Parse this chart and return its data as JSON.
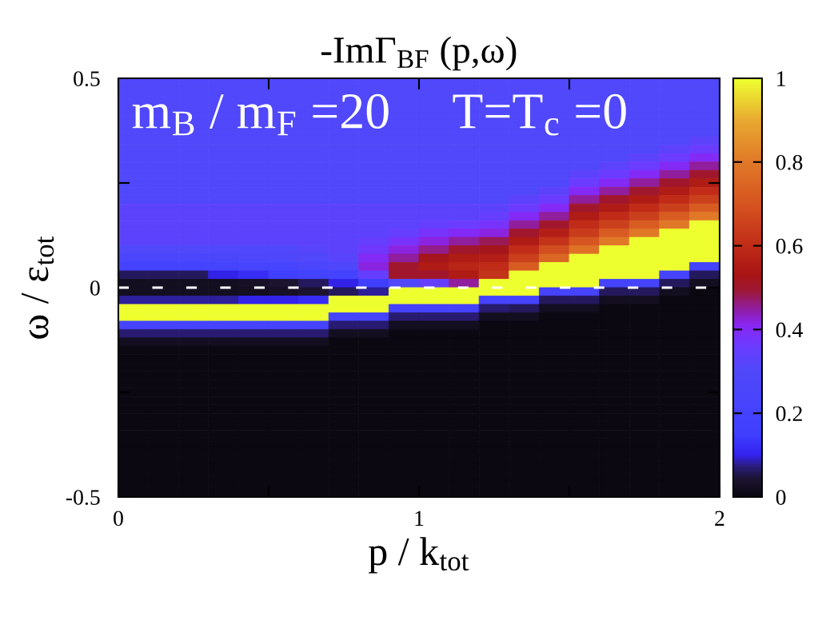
{
  "chart_data": {
    "type": "heatmap",
    "title": "-ImΓ$_{BF}$ (p,ω)",
    "xlabel": "p / k$_{tot}$",
    "ylabel": "ω / ε$_{tot}$",
    "annotations": [
      "m$_{B}$ / m$_{F}$ =20",
      "T=T$_{c}$ =0"
    ],
    "x": [
      0.05,
      0.15,
      0.25,
      0.35,
      0.45,
      0.55,
      0.65,
      0.75,
      0.85,
      0.95,
      1.05,
      1.15,
      1.25,
      1.35,
      1.45,
      1.55,
      1.65,
      1.75,
      1.85,
      1.95
    ],
    "y": [
      0.49,
      0.47,
      0.45,
      0.43,
      0.41,
      0.39,
      0.37,
      0.35,
      0.33,
      0.31,
      0.29,
      0.27,
      0.25,
      0.23,
      0.21,
      0.19,
      0.17,
      0.15,
      0.13,
      0.11,
      0.09,
      0.07,
      0.05,
      0.03,
      0.01,
      -0.01,
      -0.03,
      -0.05,
      -0.07,
      -0.09,
      -0.11,
      -0.13,
      -0.15,
      -0.17,
      -0.19,
      -0.21,
      -0.23,
      -0.25,
      -0.27,
      -0.29,
      -0.31,
      -0.33,
      -0.35,
      -0.37,
      -0.39,
      -0.41,
      -0.43,
      -0.45,
      -0.47,
      -0.49
    ],
    "xlim": [
      0,
      2
    ],
    "xticks": [
      0,
      {
        "value": 0.5,
        "label": null
      },
      1,
      {
        "value": 1.5,
        "label": null
      },
      2
    ],
    "ylim": [
      -0.5,
      0.5
    ],
    "yticks": [
      {
        "value": -0.5,
        "label": "-0.5"
      },
      {
        "value": -0.25,
        "label": null
      },
      0,
      {
        "value": 0.25,
        "label": null
      },
      0.5
    ],
    "clim": [
      0,
      1
    ],
    "cticks": [
      0,
      0.2,
      0.4,
      0.6,
      0.8,
      1
    ],
    "ref_lines": [
      {
        "axis": "y",
        "value": 0,
        "color": "#ffffff",
        "line_style": "dashed"
      }
    ],
    "cells": [
      [
        0.3,
        0.3,
        0.3,
        0.3,
        0.3,
        0.3,
        0.3,
        0.3,
        0.3,
        0.3,
        0.3,
        0.3,
        0.3,
        0.3,
        0.3,
        0.3,
        0.3,
        0.3,
        0.3,
        0.3
      ],
      [
        0.3,
        0.3,
        0.3,
        0.3,
        0.3,
        0.3,
        0.3,
        0.3,
        0.3,
        0.3,
        0.3,
        0.3,
        0.3,
        0.3,
        0.3,
        0.3,
        0.3,
        0.3,
        0.3,
        0.3
      ],
      [
        0.3,
        0.3,
        0.3,
        0.3,
        0.3,
        0.3,
        0.3,
        0.3,
        0.3,
        0.3,
        0.3,
        0.3,
        0.3,
        0.3,
        0.3,
        0.3,
        0.3,
        0.3,
        0.3,
        0.3
      ],
      [
        0.3,
        0.3,
        0.3,
        0.3,
        0.3,
        0.3,
        0.3,
        0.3,
        0.3,
        0.3,
        0.3,
        0.3,
        0.3,
        0.3,
        0.3,
        0.3,
        0.3,
        0.3,
        0.3,
        0.3
      ],
      [
        0.3,
        0.3,
        0.3,
        0.3,
        0.3,
        0.3,
        0.3,
        0.3,
        0.3,
        0.3,
        0.3,
        0.3,
        0.3,
        0.3,
        0.3,
        0.3,
        0.3,
        0.3,
        0.3,
        0.3
      ],
      [
        0.3,
        0.3,
        0.3,
        0.3,
        0.3,
        0.3,
        0.3,
        0.3,
        0.3,
        0.3,
        0.3,
        0.3,
        0.3,
        0.3,
        0.3,
        0.3,
        0.3,
        0.3,
        0.3,
        0.3
      ],
      [
        0.3,
        0.3,
        0.3,
        0.3,
        0.3,
        0.3,
        0.3,
        0.3,
        0.3,
        0.3,
        0.3,
        0.3,
        0.3,
        0.3,
        0.3,
        0.3,
        0.3,
        0.3,
        0.3,
        0.3
      ],
      [
        0.3,
        0.3,
        0.3,
        0.3,
        0.3,
        0.3,
        0.3,
        0.3,
        0.3,
        0.3,
        0.3,
        0.3,
        0.3,
        0.3,
        0.3,
        0.3,
        0.3,
        0.3,
        0.3,
        0.33
      ],
      [
        0.3,
        0.3,
        0.3,
        0.3,
        0.3,
        0.3,
        0.3,
        0.3,
        0.3,
        0.3,
        0.3,
        0.3,
        0.3,
        0.3,
        0.3,
        0.3,
        0.3,
        0.3,
        0.33,
        0.36
      ],
      [
        0.3,
        0.3,
        0.3,
        0.3,
        0.3,
        0.3,
        0.3,
        0.3,
        0.3,
        0.3,
        0.3,
        0.3,
        0.3,
        0.3,
        0.3,
        0.3,
        0.3,
        0.33,
        0.36,
        0.4
      ],
      [
        0.3,
        0.3,
        0.3,
        0.3,
        0.3,
        0.3,
        0.3,
        0.3,
        0.3,
        0.3,
        0.3,
        0.3,
        0.3,
        0.3,
        0.3,
        0.3,
        0.33,
        0.36,
        0.4,
        0.45
      ],
      [
        0.3,
        0.3,
        0.3,
        0.3,
        0.3,
        0.3,
        0.3,
        0.3,
        0.3,
        0.3,
        0.3,
        0.3,
        0.3,
        0.3,
        0.3,
        0.33,
        0.36,
        0.4,
        0.45,
        0.5
      ],
      [
        0.3,
        0.3,
        0.3,
        0.3,
        0.3,
        0.3,
        0.3,
        0.3,
        0.3,
        0.3,
        0.3,
        0.3,
        0.3,
        0.3,
        0.3,
        0.36,
        0.4,
        0.45,
        0.5,
        0.55
      ],
      [
        0.3,
        0.3,
        0.3,
        0.3,
        0.3,
        0.3,
        0.3,
        0.3,
        0.3,
        0.3,
        0.3,
        0.3,
        0.3,
        0.3,
        0.33,
        0.4,
        0.45,
        0.5,
        0.55,
        0.6
      ],
      [
        0.3,
        0.3,
        0.3,
        0.3,
        0.3,
        0.3,
        0.3,
        0.3,
        0.3,
        0.3,
        0.3,
        0.3,
        0.3,
        0.33,
        0.36,
        0.45,
        0.5,
        0.55,
        0.6,
        0.65
      ],
      [
        0.33,
        0.33,
        0.33,
        0.33,
        0.33,
        0.33,
        0.33,
        0.33,
        0.33,
        0.33,
        0.33,
        0.33,
        0.33,
        0.36,
        0.4,
        0.5,
        0.55,
        0.6,
        0.65,
        0.72
      ],
      [
        0.33,
        0.33,
        0.33,
        0.33,
        0.33,
        0.33,
        0.33,
        0.33,
        0.33,
        0.33,
        0.33,
        0.33,
        0.35,
        0.4,
        0.45,
        0.55,
        0.6,
        0.65,
        0.72,
        0.8
      ],
      [
        0.33,
        0.33,
        0.33,
        0.33,
        0.33,
        0.33,
        0.33,
        0.33,
        0.33,
        0.33,
        0.35,
        0.36,
        0.38,
        0.45,
        0.5,
        0.6,
        0.65,
        0.72,
        0.8,
        1
      ],
      [
        0.33,
        0.33,
        0.33,
        0.33,
        0.33,
        0.33,
        0.33,
        0.33,
        0.33,
        0.35,
        0.38,
        0.4,
        0.42,
        0.5,
        0.56,
        0.64,
        0.72,
        0.8,
        1,
        1
      ],
      [
        0.33,
        0.33,
        0.33,
        0.33,
        0.33,
        0.33,
        0.33,
        0.33,
        0.35,
        0.38,
        0.42,
        0.45,
        0.48,
        0.55,
        0.62,
        0.7,
        0.8,
        1,
        1,
        1
      ],
      [
        0.3,
        0.3,
        0.3,
        0.3,
        0.3,
        0.3,
        0.32,
        0.33,
        0.37,
        0.42,
        0.46,
        0.5,
        0.52,
        0.6,
        0.68,
        0.78,
        1,
        1,
        1,
        1
      ],
      [
        0.25,
        0.25,
        0.25,
        0.26,
        0.27,
        0.28,
        0.3,
        0.32,
        0.4,
        0.45,
        0.52,
        0.55,
        0.56,
        0.65,
        0.75,
        1,
        1,
        1,
        1,
        1
      ],
      [
        0.2,
        0.2,
        0.2,
        0.2,
        0.22,
        0.22,
        0.25,
        0.28,
        0.42,
        0.5,
        0.55,
        0.58,
        0.6,
        0.72,
        1,
        1,
        1,
        1,
        1,
        0.2
      ],
      [
        0.06,
        0.06,
        0.06,
        0.1,
        0.12,
        0.15,
        0.18,
        0.2,
        0.35,
        0.5,
        0.5,
        0.55,
        0.62,
        1,
        1,
        1,
        1,
        1,
        0.2,
        0.06
      ],
      [
        0.02,
        0.02,
        0.02,
        0.02,
        0.03,
        0.04,
        0.06,
        0.1,
        0.15,
        0.3,
        0.35,
        0.45,
        1,
        1,
        1,
        1,
        0.2,
        0.2,
        0.06,
        0.02
      ],
      [
        0.02,
        0.02,
        0.02,
        0.02,
        0.02,
        0.03,
        0.04,
        0.06,
        0.08,
        1,
        1,
        1,
        1,
        1,
        0.2,
        0.2,
        0.06,
        0.06,
        0.02,
        0
      ],
      [
        0.08,
        0.08,
        0.08,
        0.08,
        0.1,
        0.1,
        0.12,
        1,
        1,
        1,
        1,
        1,
        0.2,
        0.2,
        0.06,
        0.06,
        0.02,
        0.02,
        0,
        0
      ],
      [
        1,
        1,
        1,
        1,
        1,
        1,
        1,
        1,
        1,
        0.2,
        0.2,
        0.2,
        0.07,
        0.06,
        0.02,
        0.02,
        0,
        0,
        0,
        0
      ],
      [
        1,
        1,
        1,
        1,
        1,
        1,
        1,
        0.2,
        0.2,
        0.07,
        0.07,
        0.07,
        0.02,
        0.02,
        0,
        0,
        0,
        0,
        0,
        0
      ],
      [
        0.2,
        0.2,
        0.2,
        0.2,
        0.2,
        0.2,
        0.2,
        0.07,
        0.07,
        0.02,
        0.02,
        0.02,
        0,
        0,
        0,
        0,
        0,
        0,
        0,
        0
      ],
      [
        0.07,
        0.07,
        0.07,
        0.07,
        0.07,
        0.07,
        0.07,
        0.02,
        0.02,
        0,
        0,
        0,
        0,
        0,
        0,
        0,
        0,
        0,
        0,
        0
      ],
      [
        0.02,
        0.02,
        0.02,
        0.02,
        0.02,
        0.02,
        0.02,
        0,
        0,
        0,
        0,
        0,
        0,
        0,
        0,
        0,
        0,
        0,
        0,
        0
      ],
      [
        0,
        0,
        0,
        0,
        0,
        0,
        0,
        0,
        0,
        0,
        0,
        0,
        0,
        0,
        0,
        0,
        0,
        0,
        0,
        0
      ],
      [
        0,
        0,
        0,
        0,
        0,
        0,
        0,
        0,
        0,
        0,
        0,
        0,
        0,
        0,
        0,
        0,
        0,
        0,
        0,
        0
      ],
      [
        0,
        0,
        0,
        0,
        0,
        0,
        0,
        0,
        0,
        0,
        0,
        0,
        0,
        0,
        0,
        0,
        0,
        0,
        0,
        0
      ],
      [
        0,
        0,
        0,
        0,
        0,
        0,
        0,
        0,
        0,
        0,
        0,
        0,
        0,
        0,
        0,
        0,
        0,
        0,
        0,
        0
      ],
      [
        0,
        0,
        0,
        0,
        0,
        0,
        0,
        0,
        0,
        0,
        0,
        0,
        0,
        0,
        0,
        0,
        0,
        0,
        0,
        0
      ],
      [
        0,
        0,
        0,
        0,
        0,
        0,
        0,
        0,
        0,
        0,
        0,
        0,
        0,
        0,
        0,
        0,
        0,
        0,
        0,
        0
      ],
      [
        0,
        0,
        0,
        0,
        0,
        0,
        0,
        0,
        0,
        0,
        0,
        0,
        0,
        0,
        0,
        0,
        0,
        0,
        0,
        0
      ],
      [
        0,
        0,
        0,
        0,
        0,
        0,
        0,
        0,
        0,
        0,
        0,
        0,
        0,
        0,
        0,
        0,
        0,
        0,
        0,
        0
      ],
      [
        0,
        0,
        0,
        0,
        0,
        0,
        0,
        0,
        0,
        0,
        0,
        0,
        0,
        0,
        0,
        0,
        0,
        0,
        0,
        0
      ],
      [
        0,
        0,
        0,
        0,
        0,
        0,
        0,
        0,
        0,
        0,
        0,
        0,
        0,
        0,
        0,
        0,
        0,
        0,
        0,
        0
      ],
      [
        0,
        0,
        0,
        0,
        0,
        0,
        0,
        0,
        0,
        0,
        0,
        0,
        0,
        0,
        0,
        0,
        0,
        0,
        0,
        0
      ],
      [
        0,
        0,
        0,
        0,
        0,
        0,
        0,
        0,
        0,
        0,
        0,
        0,
        0,
        0,
        0,
        0,
        0,
        0,
        0,
        0
      ],
      [
        0,
        0,
        0,
        0,
        0,
        0,
        0,
        0,
        0,
        0,
        0,
        0,
        0,
        0,
        0,
        0,
        0,
        0,
        0,
        0
      ],
      [
        0,
        0,
        0,
        0,
        0,
        0,
        0,
        0,
        0,
        0,
        0,
        0,
        0,
        0,
        0,
        0,
        0,
        0,
        0,
        0
      ],
      [
        0,
        0,
        0,
        0,
        0,
        0,
        0,
        0,
        0,
        0,
        0,
        0,
        0,
        0,
        0,
        0,
        0,
        0,
        0,
        0
      ],
      [
        0,
        0,
        0,
        0,
        0,
        0,
        0,
        0,
        0,
        0,
        0,
        0,
        0,
        0,
        0,
        0,
        0,
        0,
        0,
        0
      ],
      [
        0,
        0,
        0,
        0,
        0,
        0,
        0,
        0,
        0,
        0,
        0,
        0,
        0,
        0,
        0,
        0,
        0,
        0,
        0,
        0
      ],
      [
        0,
        0,
        0,
        0,
        0,
        0,
        0,
        0,
        0,
        0,
        0,
        0,
        0,
        0,
        0,
        0,
        0,
        0,
        0,
        0
      ]
    ]
  }
}
